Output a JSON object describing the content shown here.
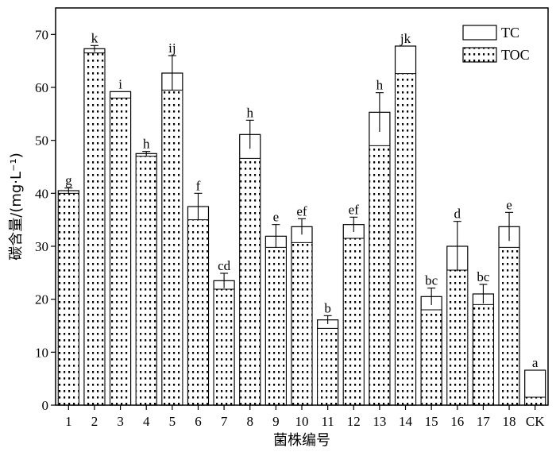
{
  "chart_data": {
    "type": "bar",
    "xlabel": "菌株编号",
    "ylabel": "碳含量/(mg·L⁻¹)",
    "ylim": [
      0,
      75
    ],
    "yticks": [
      0,
      10,
      20,
      30,
      40,
      50,
      60,
      70
    ],
    "categories": [
      "1",
      "2",
      "3",
      "4",
      "5",
      "6",
      "7",
      "8",
      "9",
      "10",
      "11",
      "12",
      "13",
      "14",
      "15",
      "16",
      "17",
      "18",
      "CK"
    ],
    "series": [
      {
        "name": "TC",
        "values": [
          40.5,
          67.3,
          59.2,
          47.5,
          62.7,
          37.5,
          23.5,
          51.1,
          31.9,
          33.7,
          16.1,
          34.1,
          55.3,
          67.8,
          20.5,
          30.0,
          21.0,
          33.7,
          6.6
        ],
        "error": [
          0.5,
          0.6,
          0.0,
          0.4,
          3.3,
          2.5,
          1.4,
          2.7,
          2.2,
          1.5,
          0.8,
          1.4,
          3.7,
          0.0,
          1.6,
          4.7,
          1.8,
          2.7,
          0.0
        ]
      },
      {
        "name": "TOC",
        "values": [
          40.0,
          66.5,
          58.0,
          47.0,
          59.5,
          35.0,
          21.9,
          46.6,
          29.8,
          30.7,
          14.5,
          31.5,
          49.0,
          62.6,
          18.0,
          25.5,
          19.0,
          29.8,
          1.5
        ]
      }
    ],
    "significance": [
      "g",
      "k",
      "i",
      "h",
      "ij",
      "f",
      "cd",
      "h",
      "e",
      "ef",
      "b",
      "ef",
      "h",
      "jk",
      "bc",
      "d",
      "bc",
      "e",
      "a"
    ],
    "legend": {
      "position": "top-right",
      "entries": [
        "TC",
        "TOC"
      ]
    },
    "colors": {
      "axis": "#000000",
      "tc_fill": "#ffffff",
      "toc_dots": "#000000"
    }
  }
}
